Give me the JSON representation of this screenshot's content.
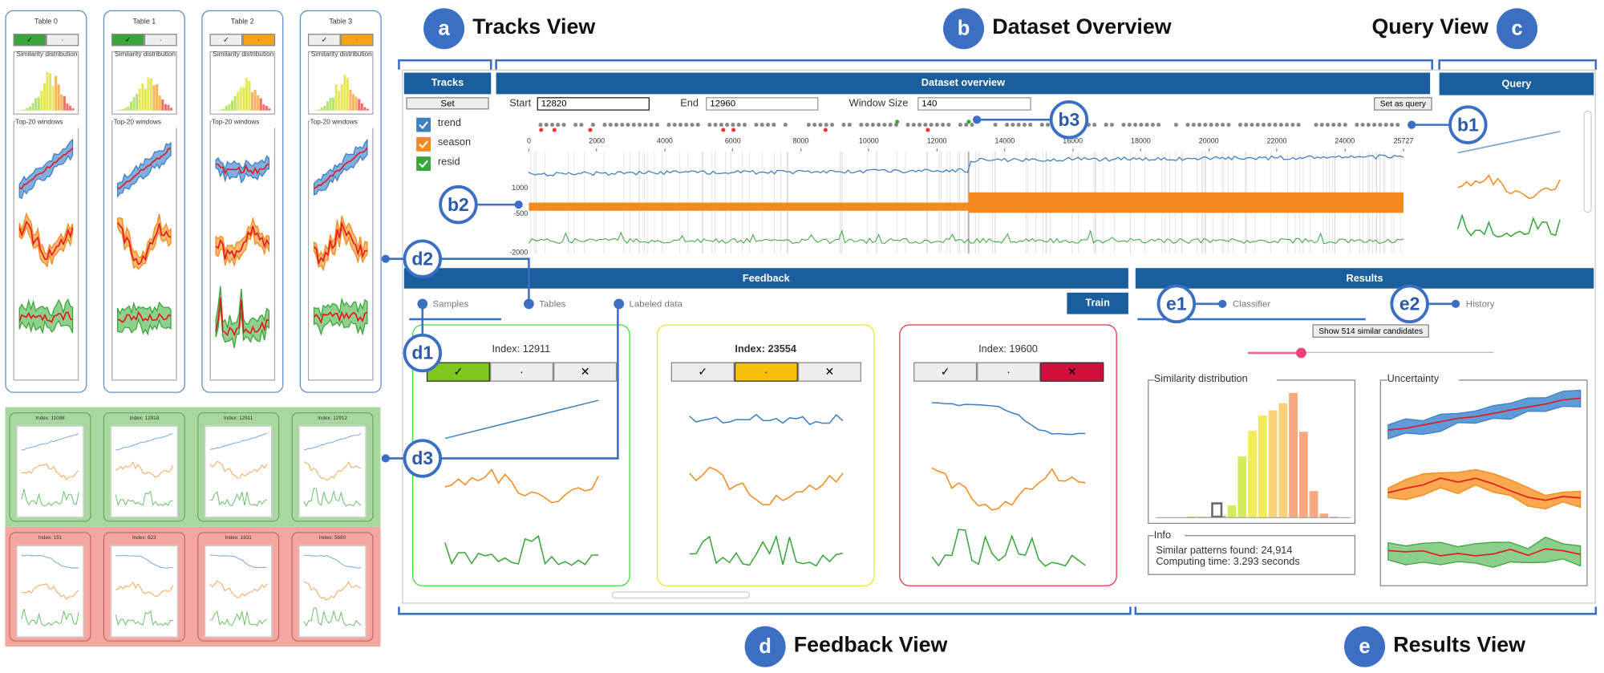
{
  "callouts": [
    {
      "letter": "a",
      "title": "Tracks View"
    },
    {
      "letter": "b",
      "title": "Dataset Overview"
    },
    {
      "letter": "c",
      "title": "Query View"
    },
    {
      "letter": "d",
      "title": "Feedback View"
    },
    {
      "letter": "e",
      "title": "Results View"
    }
  ],
  "markers": [
    "b1",
    "b2",
    "b3",
    "d1",
    "d2",
    "d3",
    "e1",
    "e2"
  ],
  "tables": {
    "titles": [
      "Table 0",
      "Table 1",
      "Table 2",
      "Table 3"
    ],
    "buttons": [
      "✓",
      "·"
    ],
    "similarity": "Similarity distribution",
    "top": "Top-20 windows"
  },
  "labeled_data": {
    "positive": [
      "Index: 11088",
      "Index: 12918",
      "Index: 12911",
      "Index: 12912"
    ],
    "negative": [
      "Index: 151",
      "Index: 623",
      "Index: 1631",
      "Index: 5680"
    ]
  },
  "tracks": {
    "title": "Tracks",
    "button": "Set",
    "items": [
      "trend",
      "season",
      "resid"
    ]
  },
  "overview": {
    "title": "Dataset overview",
    "start_label": "Start",
    "start": 12820,
    "end_label": "End",
    "end": 12960,
    "window_label": "Window Size",
    "window": 140,
    "button": "Set as query",
    "xlim": [
      0,
      25727
    ],
    "xticks": [
      0,
      2000,
      4000,
      6000,
      8000,
      10000,
      12000,
      14000,
      16000,
      18000,
      20000,
      22000,
      24000,
      25727
    ],
    "ylabels": [
      "1000",
      "-500",
      "-2000"
    ]
  },
  "query": {
    "title": "Query"
  },
  "feedback": {
    "title": "Feedback",
    "tabs": [
      "Samples",
      "Tables",
      "Labeled data"
    ],
    "train": "Train",
    "cards": [
      "Index: 12911",
      "Index: 23554",
      "Index: 19600"
    ],
    "buttons": [
      "✓",
      "·",
      "✕"
    ]
  },
  "results": {
    "title": "Results",
    "tabs": [
      "Classifier",
      "History"
    ],
    "button": "Show 514 similar candidates",
    "similarity": "Similarity distribution",
    "uncertainty": "Uncertainty",
    "info": "Info",
    "info_lines": [
      "Similar patterns found: 24,914",
      "Computing time: 3.293 seconds"
    ]
  }
}
